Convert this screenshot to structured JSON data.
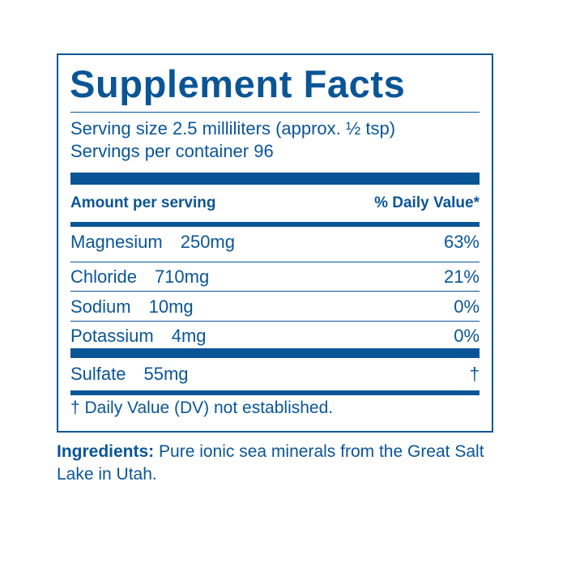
{
  "panel": {
    "title": "Supplement Facts",
    "serving_size": "Serving size 2.5 milliliters (approx. ½ tsp)",
    "servings_per_container": "Servings per container 96",
    "header_amount": "Amount per serving",
    "header_dv": "% Daily Value*",
    "nutrients": [
      {
        "name": "Magnesium",
        "amount": "250mg",
        "dv": "63%"
      },
      {
        "name": "Chloride",
        "amount": "710mg",
        "dv": "21%"
      },
      {
        "name": "Sodium",
        "amount": "10mg",
        "dv": "0%"
      },
      {
        "name": "Potassium",
        "amount": "4mg",
        "dv": "0%"
      }
    ],
    "other_nutrients": [
      {
        "name": "Sulfate",
        "amount": "55mg",
        "dv": "†"
      }
    ],
    "footnote": "† Daily Value (DV) not established."
  },
  "ingredients": {
    "label": "Ingredients:",
    "text": " Pure ionic sea minerals from the Great Salt Lake in Utah."
  },
  "colors": {
    "brand_blue": "#0a5596",
    "background": "#ffffff"
  }
}
